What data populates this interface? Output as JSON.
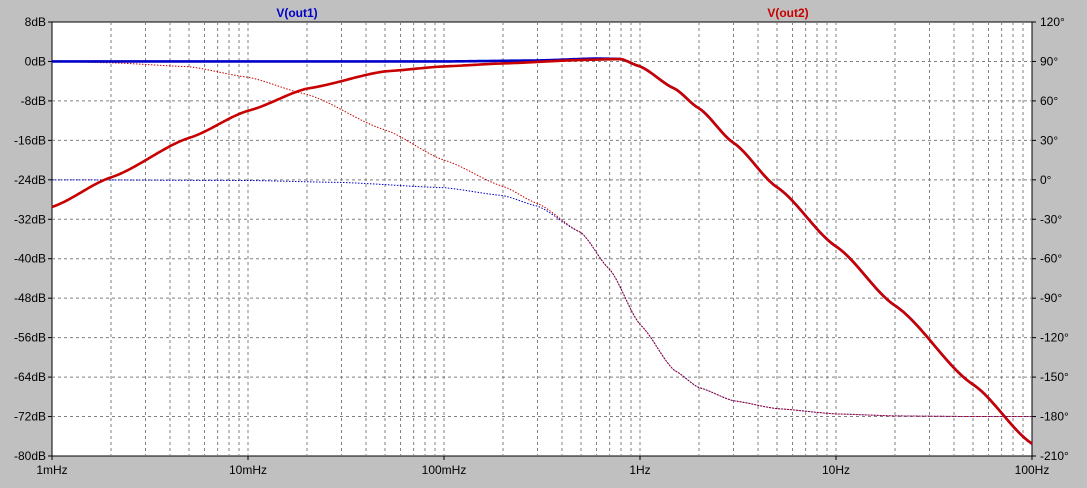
{
  "chart_data": {
    "type": "line",
    "title": "",
    "xlabel": "",
    "ylabel": "",
    "x_scale": "log",
    "xlim": [
      0.001,
      100
    ],
    "ylim": [
      -80,
      8
    ],
    "y2lim": [
      -210,
      120
    ],
    "grid": true,
    "x_tick_labels": [
      "1mHz",
      "10mHz",
      "100mHz",
      "1Hz",
      "10Hz",
      "100Hz"
    ],
    "x_tick_values": [
      0.001,
      0.01,
      0.1,
      1,
      10,
      100
    ],
    "y_tick_labels": [
      "8dB",
      "0dB",
      "-8dB",
      "-16dB",
      "-24dB",
      "-32dB",
      "-40dB",
      "-48dB",
      "-56dB",
      "-64dB",
      "-72dB",
      "-80dB"
    ],
    "y_tick_values": [
      8,
      0,
      -8,
      -16,
      -24,
      -32,
      -40,
      -48,
      -56,
      -64,
      -72,
      -80
    ],
    "y2_tick_labels": [
      "120°",
      "90°",
      "60°",
      "30°",
      "0°",
      "-30°",
      "-60°",
      "-90°",
      "-120°",
      "-150°",
      "-180°",
      "-210°"
    ],
    "y2_tick_values": [
      120,
      90,
      60,
      30,
      0,
      -30,
      -60,
      -90,
      -120,
      -150,
      -180,
      -210
    ],
    "series": [
      {
        "name": "V(out1)",
        "color": "#0000c8",
        "magnitude": {
          "x": [
            0.001,
            0.01,
            0.1,
            0.3,
            0.6,
            0.8,
            1,
            1.5,
            2,
            3,
            5,
            10,
            20,
            50,
            100
          ],
          "y": [
            0,
            0,
            0,
            0.2,
            0.6,
            0.5,
            -1,
            -5.5,
            -9.5,
            -16.5,
            -25.5,
            -37.5,
            -49.5,
            -65.5,
            -77.5
          ]
        },
        "phase": {
          "x": [
            0.001,
            0.01,
            0.03,
            0.1,
            0.2,
            0.3,
            0.5,
            0.7,
            1,
            1.5,
            2,
            3,
            5,
            10,
            20,
            50,
            100
          ],
          "y": [
            0,
            -0.5,
            -2,
            -6,
            -12,
            -20,
            -40,
            -68,
            -110,
            -145,
            -158,
            -168,
            -174,
            -178,
            -179.5,
            -180,
            -180
          ]
        }
      },
      {
        "name": "V(out2)",
        "color": "#c80000",
        "magnitude": {
          "x": [
            0.001,
            0.002,
            0.005,
            0.01,
            0.02,
            0.05,
            0.1,
            0.2,
            0.5,
            0.8,
            1,
            1.5,
            2,
            3,
            5,
            10,
            20,
            50,
            100
          ],
          "y": [
            -29.5,
            -23.5,
            -15.5,
            -10,
            -5.5,
            -2,
            -1,
            -0.4,
            0.3,
            0.5,
            -1,
            -5.5,
            -9.5,
            -16.5,
            -25.5,
            -37.5,
            -49.5,
            -65.5,
            -77.5
          ]
        },
        "phase": {
          "x": [
            0.001,
            0.002,
            0.005,
            0.01,
            0.02,
            0.05,
            0.1,
            0.2,
            0.3,
            0.5,
            0.7,
            1,
            1.5,
            2,
            3,
            5,
            10,
            20,
            50,
            100
          ],
          "y": [
            90,
            89,
            86,
            78,
            65,
            38,
            15,
            -5,
            -18,
            -40,
            -68,
            -110,
            -145,
            -158,
            -168,
            -174,
            -178,
            -179.5,
            -180,
            -180
          ]
        }
      }
    ]
  }
}
